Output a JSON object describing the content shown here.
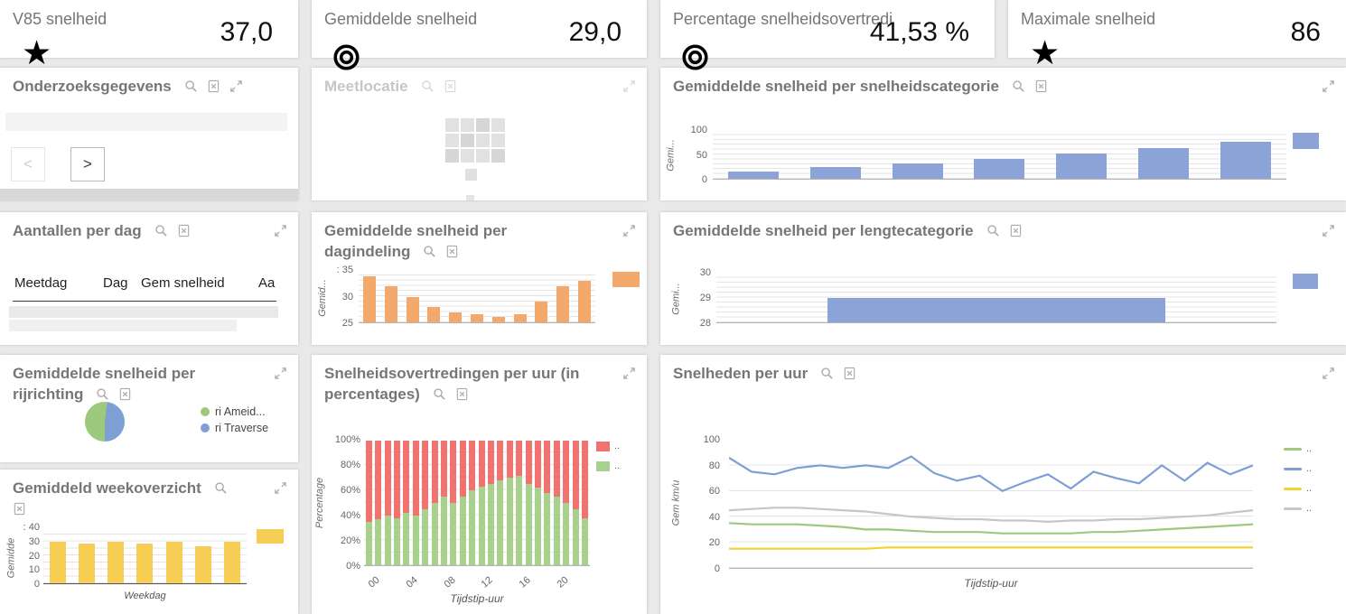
{
  "colors": {
    "bar_blue": "#8CA3D8",
    "bar_orange": "#F2A96B",
    "bar_yellow": "#F6CE55",
    "stack_red": "#F2726F",
    "stack_green": "#A9D18E",
    "line_green": "#9CC97B",
    "line_blue": "#7E9FD4",
    "line_yellow": "#F2D22E",
    "line_gray": "#C6C6C6"
  },
  "kpis": [
    {
      "title": "V85 snelheid",
      "value": "37,0",
      "icon": "star"
    },
    {
      "title": "Gemiddelde snelheid",
      "value": "29,0",
      "icon": "target"
    },
    {
      "title": "Percentage snelheidsovertredi",
      "value": "41,53 %",
      "icon": "target"
    },
    {
      "title": "Maximale snelheid",
      "value": "86",
      "icon": "star"
    }
  ],
  "panels": {
    "onderzoeksgegevens": {
      "title": "Onderzoeksgegevens",
      "prev_label": "<",
      "next_label": ">"
    },
    "meetlocatie": {
      "title": "Meetlocatie"
    },
    "snelheidscategorie": {
      "title": "Gemiddelde snelheid per snelheidscategorie"
    },
    "aantallen": {
      "title": "Aantallen per dag",
      "columns": [
        "Meetdag",
        "Dag",
        "Gem snelheid",
        "Aa"
      ]
    },
    "dagindeling": {
      "title": "Gemiddelde snelheid per dagindeling"
    },
    "lengtecategorie": {
      "title": "Gemiddelde snelheid per lengtecategorie"
    },
    "rijrichting": {
      "title": "Gemiddelde snelheid per rijrichting"
    },
    "overtredingen": {
      "title": "Snelheidsovertredingen per uur (in percentages)"
    },
    "snelheden": {
      "title": "Snelheden per uur"
    },
    "weekoverzicht": {
      "title": "Gemiddeld weekoverzicht"
    }
  },
  "chart_data": [
    {
      "id": "snelheidscategorie",
      "type": "bar",
      "title": "Gemiddelde snelheid per snelheidscategorie",
      "ylabel": "Gemi...",
      "ylim": [
        0,
        100
      ],
      "yticks": [
        "100",
        "50",
        "0"
      ],
      "values": [
        15,
        25,
        33,
        42,
        52,
        65,
        78
      ],
      "color": "#8CA3D8"
    },
    {
      "id": "dagindeling",
      "type": "bar",
      "title": "Gemiddelde snelheid per dagindeling",
      "ylabel": "Gemid...",
      "ylim": [
        25,
        35
      ],
      "yticks": [
        ": 35",
        "30",
        "25"
      ],
      "values": [
        34,
        32,
        30,
        28,
        27,
        26.5,
        26,
        26.5,
        29,
        32,
        33
      ],
      "color": "#F2A96B"
    },
    {
      "id": "lengtecategorie",
      "type": "bar",
      "title": "Gemiddelde snelheid per lengtecategorie",
      "ylabel": "Gemi...",
      "ylim": [
        28,
        30
      ],
      "yticks": [
        "30",
        "29",
        "28"
      ],
      "values": [
        29
      ],
      "color": "#8CA3D8"
    },
    {
      "id": "rijrichting",
      "type": "pie",
      "title": "Gemiddelde snelheid per rijrichting",
      "slices": [
        {
          "label": "ri Ameid...",
          "value": 52,
          "color": "#9CC97B"
        },
        {
          "label": "ri Traverse",
          "value": 48,
          "color": "#7E9FD4"
        }
      ]
    },
    {
      "id": "overtredingen",
      "type": "stacked-bar",
      "title": "Snelheidsovertredingen per uur (in percentages)",
      "ylabel": "Percentage",
      "xlabel": "Tijdstip-uur",
      "ylim": [
        0,
        100
      ],
      "yticks": [
        "100%",
        "80%",
        "60%",
        "40%",
        "20%",
        "0%"
      ],
      "xticks": [
        "00",
        "04",
        "08",
        "12",
        "16",
        "20"
      ],
      "xtick_every": 4,
      "series": [
        {
          "name": "..",
          "color": "#F2726F",
          "values": [
            65,
            63,
            60,
            62,
            58,
            60,
            55,
            50,
            45,
            50,
            45,
            40,
            37,
            35,
            32,
            30,
            28,
            35,
            38,
            42,
            45,
            50,
            55,
            62
          ]
        },
        {
          "name": "..",
          "color": "#A9D18E",
          "values": [
            35,
            37,
            40,
            38,
            42,
            40,
            45,
            50,
            55,
            50,
            55,
            60,
            63,
            65,
            68,
            70,
            72,
            65,
            62,
            58,
            55,
            50,
            45,
            38
          ]
        }
      ]
    },
    {
      "id": "snelheden",
      "type": "line",
      "title": "Snelheden per uur",
      "ylabel": "Gem km/u",
      "xlabel": "Tijdstip-uur",
      "ylim": [
        0,
        100
      ],
      "yticks": [
        "100",
        "80",
        "60",
        "40",
        "20",
        "0"
      ],
      "series": [
        {
          "name": "..",
          "color": "#9CC97B",
          "values": [
            35,
            34,
            34,
            34,
            33,
            32,
            30,
            30,
            29,
            28,
            28,
            28,
            27,
            27,
            27,
            27,
            28,
            28,
            29,
            30,
            31,
            32,
            33,
            34
          ]
        },
        {
          "name": "..",
          "color": "#7E9FD4",
          "values": [
            86,
            75,
            73,
            78,
            80,
            78,
            80,
            78,
            87,
            74,
            68,
            72,
            60,
            67,
            73,
            62,
            75,
            70,
            66,
            80,
            68,
            82,
            73,
            80
          ]
        },
        {
          "name": "..",
          "color": "#F2D22E",
          "values": [
            15,
            15,
            15,
            15,
            15,
            15,
            15,
            16,
            16,
            16,
            16,
            16,
            16,
            16,
            16,
            16,
            16,
            16,
            16,
            16,
            16,
            16,
            16,
            16
          ]
        },
        {
          "name": "..",
          "color": "#C6C6C6",
          "values": [
            45,
            46,
            47,
            47,
            46,
            45,
            44,
            42,
            40,
            39,
            38,
            38,
            37,
            37,
            36,
            37,
            37,
            38,
            38,
            39,
            40,
            41,
            43,
            45
          ]
        }
      ]
    },
    {
      "id": "weekoverzicht",
      "type": "bar",
      "title": "Gemiddeld weekoverzicht",
      "ylabel": "Gemidde",
      "xlabel": "Weekdag",
      "ylim": [
        0,
        40
      ],
      "yticks": [
        ": 40",
        "30",
        "20",
        "10",
        "0"
      ],
      "values": [
        30,
        29,
        30,
        29,
        30,
        27,
        30
      ],
      "color": "#F6CE55"
    }
  ]
}
